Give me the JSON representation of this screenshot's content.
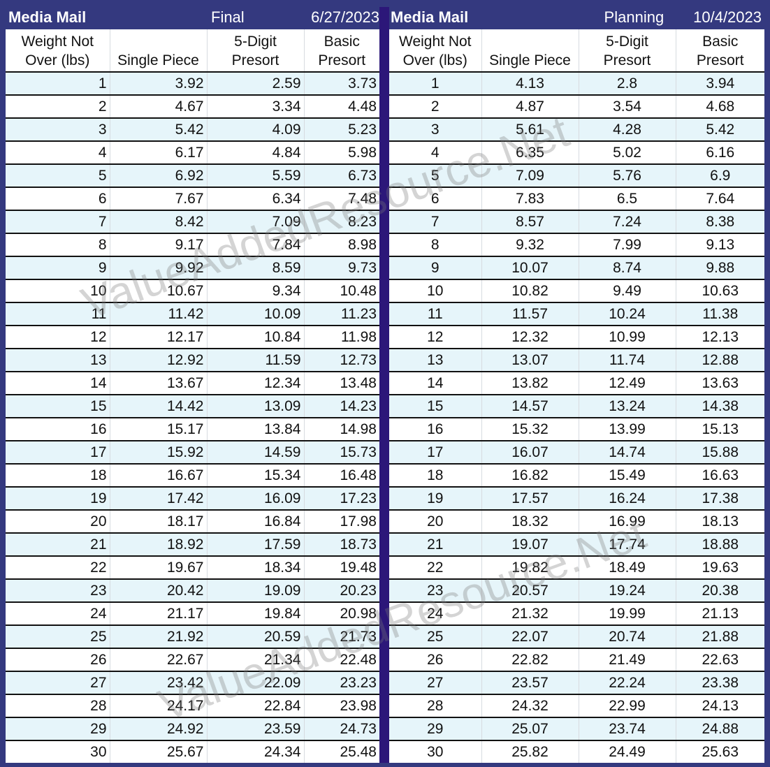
{
  "tables": [
    {
      "id": "final",
      "title": "Media Mail",
      "status": "Final",
      "date": "6/27/2023",
      "headers": [
        "Weight Not Over (lbs)",
        "Single Piece",
        "5-Digit Presort",
        "Basic Presort"
      ],
      "rows": [
        [
          "1",
          "3.92",
          "2.59",
          "3.73"
        ],
        [
          "2",
          "4.67",
          "3.34",
          "4.48"
        ],
        [
          "3",
          "5.42",
          "4.09",
          "5.23"
        ],
        [
          "4",
          "6.17",
          "4.84",
          "5.98"
        ],
        [
          "5",
          "6.92",
          "5.59",
          "6.73"
        ],
        [
          "6",
          "7.67",
          "6.34",
          "7.48"
        ],
        [
          "7",
          "8.42",
          "7.09",
          "8.23"
        ],
        [
          "8",
          "9.17",
          "7.84",
          "8.98"
        ],
        [
          "9",
          "9.92",
          "8.59",
          "9.73"
        ],
        [
          "10",
          "10.67",
          "9.34",
          "10.48"
        ],
        [
          "11",
          "11.42",
          "10.09",
          "11.23"
        ],
        [
          "12",
          "12.17",
          "10.84",
          "11.98"
        ],
        [
          "13",
          "12.92",
          "11.59",
          "12.73"
        ],
        [
          "14",
          "13.67",
          "12.34",
          "13.48"
        ],
        [
          "15",
          "14.42",
          "13.09",
          "14.23"
        ],
        [
          "16",
          "15.17",
          "13.84",
          "14.98"
        ],
        [
          "17",
          "15.92",
          "14.59",
          "15.73"
        ],
        [
          "18",
          "16.67",
          "15.34",
          "16.48"
        ],
        [
          "19",
          "17.42",
          "16.09",
          "17.23"
        ],
        [
          "20",
          "18.17",
          "16.84",
          "17.98"
        ],
        [
          "21",
          "18.92",
          "17.59",
          "18.73"
        ],
        [
          "22",
          "19.67",
          "18.34",
          "19.48"
        ],
        [
          "23",
          "20.42",
          "19.09",
          "20.23"
        ],
        [
          "24",
          "21.17",
          "19.84",
          "20.98"
        ],
        [
          "25",
          "21.92",
          "20.59",
          "21.73"
        ],
        [
          "26",
          "22.67",
          "21.34",
          "22.48"
        ],
        [
          "27",
          "23.42",
          "22.09",
          "23.23"
        ],
        [
          "28",
          "24.17",
          "22.84",
          "23.98"
        ],
        [
          "29",
          "24.92",
          "23.59",
          "24.73"
        ],
        [
          "30",
          "25.67",
          "24.34",
          "25.48"
        ]
      ]
    },
    {
      "id": "planning",
      "title": "Media Mail",
      "status": "Planning",
      "date": "10/4/2023",
      "headers": [
        "Weight Not Over (lbs)",
        "Single Piece",
        "5-Digit Presort",
        "Basic Presort"
      ],
      "rows": [
        [
          "1",
          "4.13",
          "2.8",
          "3.94"
        ],
        [
          "2",
          "4.87",
          "3.54",
          "4.68"
        ],
        [
          "3",
          "5.61",
          "4.28",
          "5.42"
        ],
        [
          "4",
          "6.35",
          "5.02",
          "6.16"
        ],
        [
          "5",
          "7.09",
          "5.76",
          "6.9"
        ],
        [
          "6",
          "7.83",
          "6.5",
          "7.64"
        ],
        [
          "7",
          "8.57",
          "7.24",
          "8.38"
        ],
        [
          "8",
          "9.32",
          "7.99",
          "9.13"
        ],
        [
          "9",
          "10.07",
          "8.74",
          "9.88"
        ],
        [
          "10",
          "10.82",
          "9.49",
          "10.63"
        ],
        [
          "11",
          "11.57",
          "10.24",
          "11.38"
        ],
        [
          "12",
          "12.32",
          "10.99",
          "12.13"
        ],
        [
          "13",
          "13.07",
          "11.74",
          "12.88"
        ],
        [
          "14",
          "13.82",
          "12.49",
          "13.63"
        ],
        [
          "15",
          "14.57",
          "13.24",
          "14.38"
        ],
        [
          "16",
          "15.32",
          "13.99",
          "15.13"
        ],
        [
          "17",
          "16.07",
          "14.74",
          "15.88"
        ],
        [
          "18",
          "16.82",
          "15.49",
          "16.63"
        ],
        [
          "19",
          "17.57",
          "16.24",
          "17.38"
        ],
        [
          "20",
          "18.32",
          "16.99",
          "18.13"
        ],
        [
          "21",
          "19.07",
          "17.74",
          "18.88"
        ],
        [
          "22",
          "19.82",
          "18.49",
          "19.63"
        ],
        [
          "23",
          "20.57",
          "19.24",
          "20.38"
        ],
        [
          "24",
          "21.32",
          "19.99",
          "21.13"
        ],
        [
          "25",
          "22.07",
          "20.74",
          "21.88"
        ],
        [
          "26",
          "22.82",
          "21.49",
          "22.63"
        ],
        [
          "27",
          "23.57",
          "22.24",
          "23.38"
        ],
        [
          "28",
          "24.32",
          "22.99",
          "24.13"
        ],
        [
          "29",
          "25.07",
          "23.74",
          "24.88"
        ],
        [
          "30",
          "25.82",
          "24.49",
          "25.63"
        ]
      ]
    }
  ],
  "watermark": "ValueAddedResource.Net",
  "colors": {
    "frame": "#34397f",
    "divider": "#2c1779",
    "alt_row": "#e6f5fa"
  }
}
